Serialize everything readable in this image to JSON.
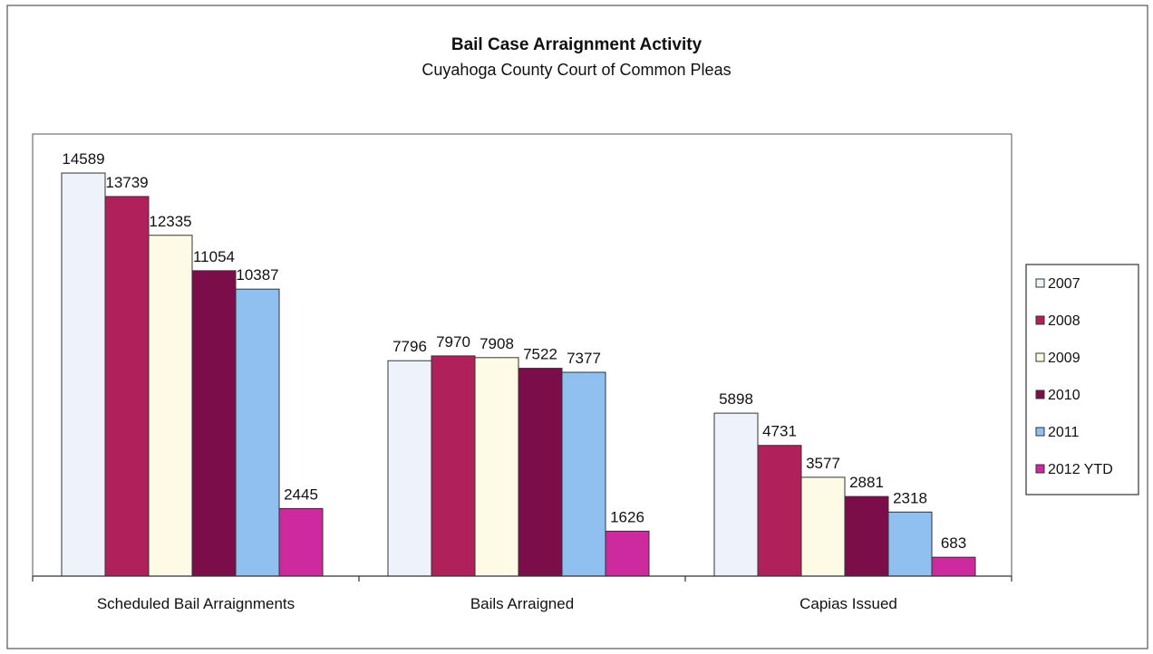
{
  "chart_data": {
    "type": "bar",
    "title": "Bail Case Arraignment Activity",
    "subtitle": "Cuyahoga County Court of Common Pleas",
    "xlabel": "",
    "ylabel": "",
    "categories": [
      "Scheduled Bail Arraignments",
      "Bails Arraigned",
      "Capias Issued"
    ],
    "series": [
      {
        "name": "2007",
        "color": "#eef3fb",
        "values": [
          14589,
          7796,
          5898
        ]
      },
      {
        "name": "2008",
        "color": "#b0205a",
        "values": [
          13739,
          7970,
          4731
        ]
      },
      {
        "name": "2009",
        "color": "#fdfbe6",
        "values": [
          12335,
          7908,
          3577
        ]
      },
      {
        "name": "2010",
        "color": "#7a0d4a",
        "values": [
          11054,
          7522,
          2881
        ]
      },
      {
        "name": "2011",
        "color": "#8fc0ef",
        "values": [
          10387,
          7377,
          2318
        ]
      },
      {
        "name": "2012 YTD",
        "color": "#cc2a9e",
        "values": [
          2445,
          1626,
          683
        ]
      }
    ],
    "ylim": [
      0,
      16000
    ],
    "grid": false,
    "legend_position": "right"
  }
}
